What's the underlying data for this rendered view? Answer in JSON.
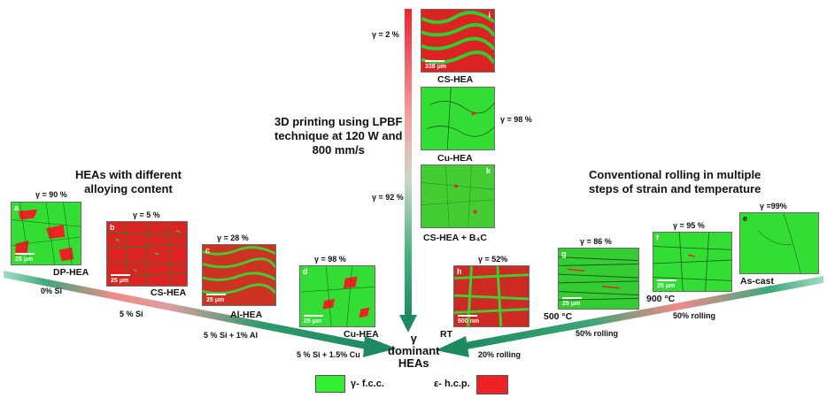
{
  "headings": {
    "left": "HEAs with different\nalloying content",
    "center": "3D printing using LPBF\ntechnique at 120 W and\n800 mm/s",
    "right": "Conventional rolling in multiple\nsteps of strain and temperature",
    "target": "γ\ndominant\nHEAs"
  },
  "panels": {
    "a": {
      "letter": "a",
      "gamma": "γ = 90 %",
      "name": "DP-HEA",
      "scale": "25 μm",
      "color": "#33dd33",
      "accent": "#ee2222"
    },
    "b": {
      "letter": "b",
      "gamma": "γ = 5 %",
      "name": "CS-HEA",
      "scale": "25 μm",
      "color": "#dd2222",
      "accent": "#33cc33"
    },
    "c": {
      "letter": "c",
      "gamma": "γ = 28 %",
      "name": "Al-HEA",
      "scale": "25 μm",
      "color": "#cc3322",
      "accent": "#44cc33"
    },
    "d": {
      "letter": "d",
      "gamma": "γ = 98 %",
      "name": "Cu-HEA",
      "scale": "25 μm",
      "color": "#33dd33",
      "accent": "#ee2222"
    },
    "h": {
      "letter": "h",
      "gamma": "γ = 52%",
      "name": "RT",
      "scale": "500 nm",
      "color": "#cc2a22",
      "accent": "#44cc33"
    },
    "g": {
      "letter": "g",
      "gamma": "γ = 86 %",
      "name": "500 °C",
      "scale": "25 μm",
      "color": "#33cc33",
      "accent": "#ee2222"
    },
    "f": {
      "letter": "f",
      "gamma": "γ = 95 %",
      "name": "900 °C",
      "scale": "25 μm",
      "color": "#33dd33",
      "accent": "#ee2222"
    },
    "e": {
      "letter": "e",
      "gamma": "γ =99%",
      "name": "As-cast",
      "scale": "",
      "color": "#33dd33",
      "accent": "#ee2222"
    },
    "i": {
      "letter": "i",
      "gamma": "γ = 2 %",
      "name": "CS-HEA",
      "scale": "338 μm",
      "color": "#dd2222",
      "accent": "#33cc33"
    },
    "j": {
      "letter": "",
      "gamma": "γ = 98 %",
      "name": "Cu-HEA",
      "scale": "",
      "color": "#33dd33",
      "accent": "#ee2222"
    },
    "k": {
      "letter": "k",
      "gamma": "γ = 92 %",
      "name": "CS-HEA + B₄C",
      "scale": "",
      "color": "#44cc33",
      "accent": "#ee2222"
    }
  },
  "arrow_labels": {
    "left_0": "0% Si",
    "left_1": "5 % Si",
    "left_2": "5 % Si + 1% Al",
    "left_3": "5 % Si + 1.5% Cu",
    "right_0": "20% rolling",
    "right_1": "50% rolling",
    "right_2": "50% rolling"
  },
  "legend": {
    "fcc_label": "γ- f.c.c.",
    "hcp_label": "ε- h.c.p.",
    "fcc_color": "#33ee33",
    "hcp_color": "#ee2222"
  }
}
